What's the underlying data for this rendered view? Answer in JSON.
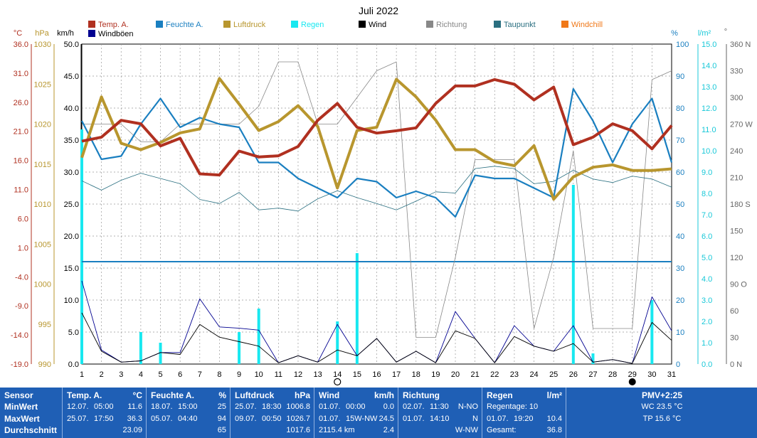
{
  "title": "Juli 2022",
  "units": {
    "temp": "°C",
    "pressure": "hPa",
    "speed": "km/h",
    "humidity": "%",
    "rain": "l/m²",
    "direction": "°"
  },
  "legend": [
    {
      "label": "Temp. A.",
      "color": "#b03020"
    },
    {
      "label": "Feuchte A.",
      "color": "#1a7fc0"
    },
    {
      "label": "Luftdruck",
      "color": "#b8962e"
    },
    {
      "label": "Regen",
      "color": "#18e8f0"
    },
    {
      "label": "Wind",
      "color": "#000000"
    },
    {
      "label": "Richtung",
      "color": "#888888"
    },
    {
      "label": "Taupunkt",
      "color": "#2a6f80"
    },
    {
      "label": "Windchill",
      "color": "#f07818"
    },
    {
      "label": "Windböen",
      "color": "#000090"
    }
  ],
  "axes": {
    "temp_ticks": [
      "36.0",
      "31.0",
      "26.0",
      "21.0",
      "16.0",
      "11.0",
      "6.0",
      "1.0",
      "-4.0",
      "-9.0",
      "-14.0",
      "-19.0"
    ],
    "pressure_ticks": [
      "1030",
      "1025",
      "1020",
      "1015",
      "1010",
      "1005",
      "1000",
      "995",
      "990"
    ],
    "speed_ticks": [
      "50.0",
      "45.0",
      "40.0",
      "35.0",
      "30.0",
      "25.0",
      "20.0",
      "15.0",
      "10.0",
      "5.0",
      "0.0"
    ],
    "humidity_ticks": [
      "100",
      "90",
      "80",
      "70",
      "60",
      "50",
      "40",
      "30",
      "20",
      "10",
      "0"
    ],
    "rain_ticks": [
      "15.0",
      "14.0",
      "13.0",
      "12.0",
      "11.0",
      "10.0",
      "9.0",
      "8.0",
      "7.0",
      "6.0",
      "5.0",
      "4.0",
      "3.0",
      "2.0",
      "1.0",
      "0.0"
    ],
    "direction_ticks": [
      "360 N",
      "330",
      "300",
      "270 W",
      "240",
      "210",
      "180 S",
      "150",
      "120",
      "90 O",
      "60",
      "30",
      "0 N"
    ],
    "day_labels": [
      "1",
      "2",
      "3",
      "4",
      "5",
      "6",
      "7",
      "8",
      "9",
      "10",
      "11",
      "12",
      "13",
      "14",
      "15",
      "16",
      "17",
      "18",
      "19",
      "20",
      "21",
      "22",
      "23",
      "24",
      "25",
      "26",
      "27",
      "28",
      "29",
      "30",
      "31"
    ]
  },
  "chart_data": {
    "type": "line",
    "title": "Juli 2022",
    "x": [
      1,
      2,
      3,
      4,
      5,
      6,
      7,
      8,
      9,
      10,
      11,
      12,
      13,
      14,
      15,
      16,
      17,
      18,
      19,
      20,
      21,
      22,
      23,
      24,
      25,
      26,
      27,
      28,
      29,
      30,
      31
    ],
    "axis_ranges": {
      "temp": [
        -19,
        36
      ],
      "pressure": [
        990,
        1030
      ],
      "speed": [
        0,
        50
      ],
      "humidity": [
        0,
        100
      ],
      "rain": [
        0,
        15
      ],
      "direction": [
        0,
        360
      ]
    },
    "grid": true,
    "series": [
      {
        "name": "Temp. A.",
        "axis": "temp",
        "values": [
          19.3,
          20.0,
          22.9,
          22.3,
          18.5,
          19.8,
          13.7,
          13.5,
          17.6,
          16.6,
          16.8,
          18.4,
          22.9,
          25.8,
          21.7,
          20.7,
          21.1,
          21.6,
          25.8,
          28.8,
          28.8,
          29.9,
          29.1,
          26.4,
          28.6,
          18.7,
          20.0,
          22.3,
          21.1,
          18.0,
          22.0
        ]
      },
      {
        "name": "Feuchte A.",
        "axis": "humidity",
        "values": [
          76,
          64,
          65,
          75,
          83,
          74,
          77,
          75,
          74,
          63,
          63,
          58,
          55,
          52,
          58,
          57,
          52,
          54,
          52,
          46,
          59,
          58,
          58,
          55,
          52,
          86,
          76,
          63,
          75,
          83,
          63
        ]
      },
      {
        "name": "Luftdruck",
        "axis": "pressure",
        "values": [
          1015.8,
          1023.4,
          1017.6,
          1016.8,
          1017.7,
          1018.9,
          1019.4,
          1025.7,
          1022.5,
          1019.2,
          1020.3,
          1022.3,
          1019.7,
          1012.0,
          1019.2,
          1019.6,
          1025.6,
          1023.4,
          1020.5,
          1016.8,
          1016.8,
          1015.3,
          1014.8,
          1017.3,
          1010.6,
          1013.4,
          1014.6,
          1014.9,
          1014.2,
          1014.2,
          1014.4
        ]
      },
      {
        "name": "Wind",
        "axis": "speed",
        "values": [
          8.0,
          2.0,
          0.3,
          0.5,
          1.8,
          1.5,
          6.2,
          4.2,
          3.5,
          2.8,
          0.2,
          1.3,
          0.3,
          2.2,
          1.3,
          4.0,
          0.3,
          2.0,
          0.2,
          5.2,
          4.0,
          0.2,
          4.3,
          2.8,
          2.0,
          3.2,
          0.3,
          0.7,
          0.1,
          6.5,
          3.7
        ]
      },
      {
        "name": "Windböen",
        "axis": "speed",
        "values": [
          13.0,
          2.2,
          0.3,
          0.5,
          1.8,
          1.8,
          10.2,
          5.8,
          5.6,
          5.3,
          0.2,
          1.3,
          0.3,
          6.2,
          1.3,
          4.0,
          0.3,
          2.0,
          0.2,
          8.2,
          4.0,
          0.2,
          6.0,
          2.8,
          2.0,
          6.0,
          0.3,
          0.7,
          0.1,
          10.5,
          5.2
        ]
      },
      {
        "name": "Richtung",
        "axis": "direction",
        "values": [
          270,
          270,
          270,
          250,
          250,
          270,
          270,
          270,
          270,
          290,
          340,
          340,
          270,
          270,
          300,
          330,
          340,
          30,
          30,
          120,
          230,
          230,
          230,
          40,
          120,
          240,
          40,
          40,
          40,
          320,
          330
        ]
      },
      {
        "name": "Taupunkt",
        "axis": "temp",
        "values": [
          12.5,
          10.9,
          12.6,
          13.8,
          12.9,
          12.0,
          9.3,
          8.6,
          10.5,
          7.5,
          7.8,
          7.3,
          9.4,
          10.8,
          9.6,
          8.6,
          7.5,
          9.0,
          10.6,
          10.4,
          14.6,
          15.0,
          14.6,
          12.0,
          12.4,
          14.3,
          12.8,
          12.2,
          13.3,
          12.8,
          11.4
        ]
      },
      {
        "name": "Regen",
        "axis": "rain",
        "type": "bar",
        "values": [
          11.0,
          0,
          0,
          1.5,
          1.0,
          0,
          0,
          0,
          1.5,
          2.6,
          0,
          0,
          0,
          2.0,
          5.2,
          0,
          0,
          0,
          0,
          0,
          0,
          0,
          0,
          0,
          0,
          8.4,
          0.5,
          0,
          0,
          3.0,
          0
        ]
      }
    ],
    "reference_lines": [
      {
        "axis": "rain",
        "value": 4.8
      }
    ]
  },
  "stats": {
    "sensor": {
      "title": "Sensor",
      "rows": [
        "MinWert",
        "MaxWert",
        "Durchschnitt"
      ]
    },
    "temp": {
      "title": "Temp. A.",
      "unit": "°C",
      "rows": [
        [
          "12.07.",
          "05:00",
          "11.6"
        ],
        [
          "25.07.",
          "17:50",
          "36.3"
        ],
        [
          "",
          "",
          "23.09"
        ]
      ]
    },
    "humidity": {
      "title": "Feuchte A.",
      "unit": "%",
      "rows": [
        [
          "18.07.",
          "15:00",
          "25"
        ],
        [
          "05.07.",
          "04:40",
          "94"
        ],
        [
          "",
          "",
          "65"
        ]
      ]
    },
    "pressure": {
      "title": "Luftdruck",
      "unit": "hPa",
      "rows": [
        [
          "25.07.",
          "18:30",
          "1006.8"
        ],
        [
          "09.07.",
          "00:50",
          "1026.7"
        ],
        [
          "",
          "",
          "1017.6"
        ]
      ]
    },
    "wind": {
      "title": "Wind",
      "unit": "km/h",
      "rows": [
        [
          "01.07.",
          "00:00",
          "0.0"
        ],
        [
          "01.07.",
          "15W-NW",
          "24.5"
        ],
        [
          "2115.4 km",
          "",
          "2.4"
        ]
      ]
    },
    "direction": {
      "title": "Richtung",
      "unit": "",
      "rows": [
        [
          "02.07.",
          "11:30",
          "N-NO"
        ],
        [
          "01.07.",
          "14:10",
          "N"
        ],
        [
          "",
          "",
          "W-NW"
        ]
      ]
    },
    "rain": {
      "title": "Regen",
      "unit": "l/m²",
      "rows": [
        [
          "Regentage: 10",
          "",
          ""
        ],
        [
          "01.07.",
          "19:20",
          "10.4"
        ],
        [
          "Gesamt:",
          "",
          "36.8"
        ]
      ]
    },
    "pmv": {
      "title": "PMV+2:25",
      "rows": [
        "WC 23.5 °C",
        "TP 15.6 °C"
      ]
    }
  }
}
